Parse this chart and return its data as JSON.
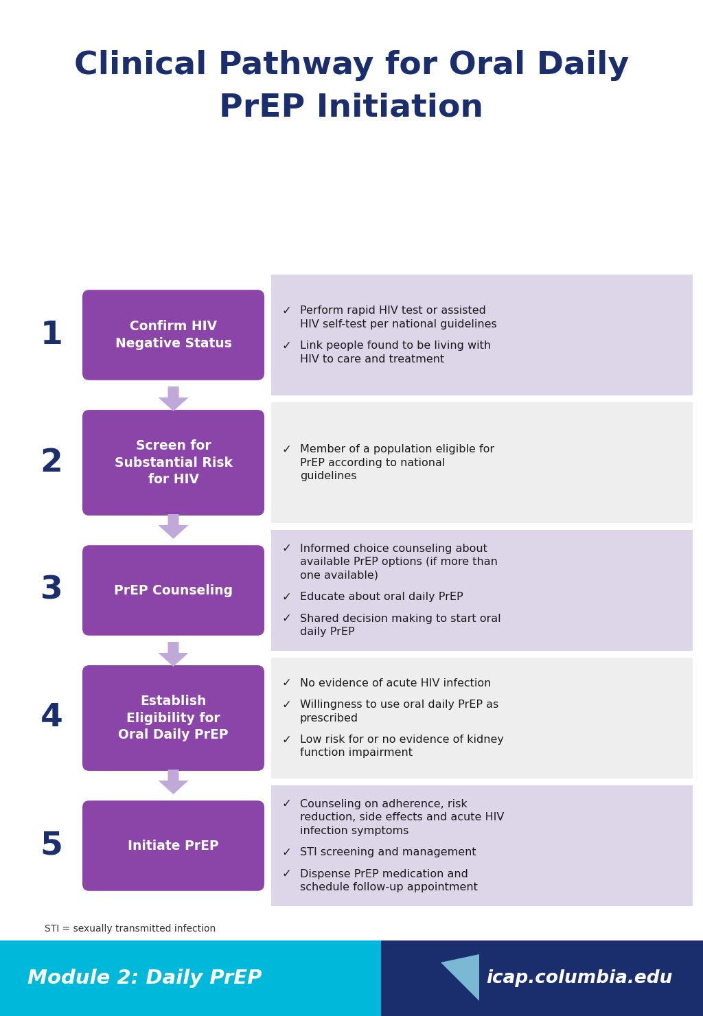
{
  "title_line1": "Clinical Pathway for Oral Daily",
  "title_line2": "PrEP Initiation",
  "title_color": "#1a2e6e",
  "title_fontsize": 34,
  "bg_color": "#ffffff",
  "steps": [
    {
      "number": "1",
      "label": "Confirm HIV\nNegative Status",
      "box_color": "#8b45a8",
      "text_color": "#ffffff"
    },
    {
      "number": "2",
      "label": "Screen for\nSubstantial Risk\nfor HIV",
      "box_color": "#8b45a8",
      "text_color": "#ffffff"
    },
    {
      "number": "3",
      "label": "PrEP Counseling",
      "box_color": "#8b45a8",
      "text_color": "#ffffff"
    },
    {
      "number": "4",
      "label": "Establish\nEligibility for\nOral Daily PrEP",
      "box_color": "#8b45a8",
      "text_color": "#ffffff"
    },
    {
      "number": "5",
      "label": "Initiate PrEP",
      "box_color": "#8b45a8",
      "text_color": "#ffffff"
    }
  ],
  "bullets": [
    [
      "Perform rapid HIV test or assisted\nHIV self-test per national guidelines",
      "Link people found to be living with\nHIV to care and treatment"
    ],
    [
      "Member of a population eligible for\nPrEP according to national\nguidelines"
    ],
    [
      "Informed choice counseling about\navailable PrEP options (if more than\none available)",
      "Educate about oral daily PrEP",
      "Shared decision making to start oral\ndaily PrEP"
    ],
    [
      "No evidence of acute HIV infection",
      "Willingness to use oral daily PrEP as\nprescribed",
      "Low risk for or no evidence of kidney\nfunction impairment"
    ],
    [
      "Counseling on adherence, risk\nreduction, side effects and acute HIV\ninfection symptoms",
      "STI screening and management",
      "Dispense PrEP medication and\nschedule follow-up appointment"
    ]
  ],
  "bullet_bg_colors": [
    "#ddd5e8",
    "#eeeeee",
    "#ddd5e8",
    "#eeeeee",
    "#ddd5e8"
  ],
  "bullet_text_color": "#1a1a1a",
  "number_color": "#1a2e6e",
  "arrow_color": "#c0a8d8",
  "footer_note": "STI = sexually transmitted infection",
  "footer_left_color": "#00b8d9",
  "footer_right_color": "#1a2e6e",
  "footer_left_text": "Module 2: Daily PrEP",
  "footer_right_text": "icap.columbia.edu"
}
